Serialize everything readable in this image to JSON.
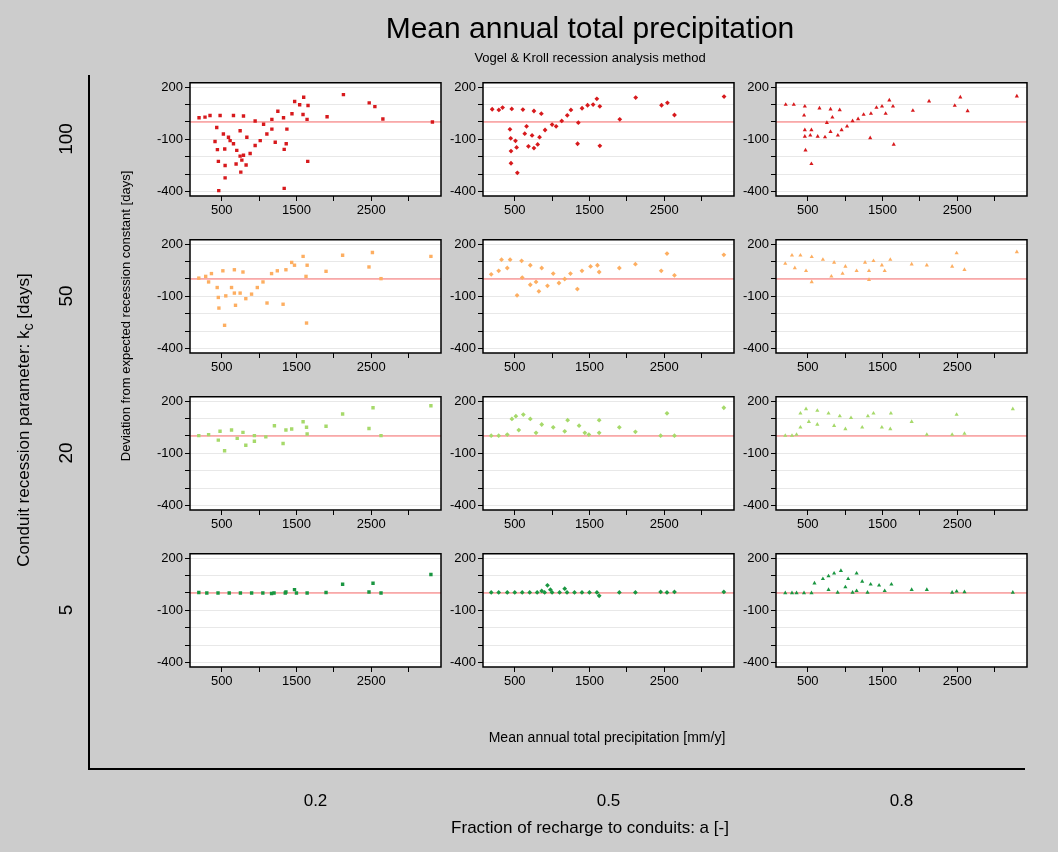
{
  "chart_data": [
    {
      "type": "scatter",
      "annotations": [
        "100",
        "Conduit recession parameter: k$_{c}$  [days]"
      ],
      "color": "#d7191c",
      "marker": "square",
      "grid": "y",
      "xlim": [
        75,
        3435
      ],
      "ylim": [
        -425,
        225
      ],
      "xticks": [
        500,
        {
          "value": 1000,
          "label": null
        },
        1500,
        {
          "value": 2000,
          "label": null
        },
        2500,
        {
          "value": 3000,
          "label": null
        }
      ],
      "yticks": [
        200,
        {
          "value": 100,
          "label": null
        },
        {
          "value": 0,
          "label": null
        },
        -100,
        {
          "value": -200,
          "label": null
        },
        {
          "value": -300,
          "label": null
        },
        -400
      ],
      "ref_lines": [
        {
          "axis": "y",
          "value": 0,
          "color": "#ff7070"
        }
      ],
      "x": [
        196,
        276,
        343,
        478,
        657,
        791,
        433,
        410,
        442,
        455,
        545,
        545,
        460,
        522,
        612,
        701,
        746,
        769,
        791,
        692,
        755,
        826,
        880,
        947,
        1015,
        1104,
        746,
        836,
        947,
        1060,
        1171,
        1216,
        1171,
        1251,
        1327,
        1336,
        1363,
        1372,
        1336,
        1440,
        1476,
        1543,
        1597,
        1655,
        1588,
        1642,
        1651,
        1910,
        2129,
        2474,
        2550,
        2657,
        3320,
        540,
        590,
        657
      ],
      "values": [
        24,
        28,
        37,
        37,
        37,
        34,
        -32,
        -112,
        -159,
        -226,
        -250,
        -321,
        -394,
        -69,
        -107,
        -163,
        -196,
        -219,
        -191,
        -241,
        -288,
        -247,
        -181,
        -135,
        -107,
        -69,
        -50,
        -88,
        6,
        -13,
        -41,
        -116,
        15,
        62,
        24,
        -157,
        -125,
        -41,
        -381,
        47,
        118,
        99,
        142,
        95,
        43,
        15,
        -226,
        30,
        157,
        110,
        88,
        17,
        0,
        -155,
        -88,
        -125
      ]
    },
    {
      "type": "scatter",
      "title": "Mean annual total precipitation",
      "subtitle": "Vogel & Kroll recession analysis method",
      "color": "#d7191c",
      "marker": "diamond",
      "grid": "y",
      "xlim": [
        75,
        3435
      ],
      "ylim": [
        -425,
        225
      ],
      "xticks": [
        500,
        {
          "value": 1000,
          "label": null
        },
        1500,
        {
          "value": 2000,
          "label": null
        },
        2500,
        {
          "value": 3000,
          "label": null
        }
      ],
      "yticks": [
        200,
        {
          "value": 100,
          "label": null
        },
        {
          "value": 0,
          "label": null
        },
        -100,
        {
          "value": -200,
          "label": null
        },
        {
          "value": -300,
          "label": null
        },
        -400
      ],
      "ref_lines": [
        {
          "axis": "y",
          "value": 0,
          "color": "#ff7070"
        }
      ],
      "x": [
        198,
        287,
        337,
        460,
        609,
        757,
        856,
        436,
        446,
        450,
        450,
        535,
        525,
        510,
        634,
        683,
        757,
        807,
        832,
        906,
        1000,
        1054,
        1129,
        1203,
        1252,
        1351,
        1341,
        1401,
        1475,
        1549,
        1599,
        1639,
        1639,
        1906,
        2119,
        2465,
        2544,
        2638,
        3302,
        732,
        658
      ],
      "values": [
        73,
        69,
        83,
        75,
        71,
        63,
        48,
        -42,
        -94,
        -167,
        -237,
        -292,
        -146,
        -108,
        -67,
        -140,
        -150,
        -129,
        -87,
        -46,
        -15,
        -25,
        6,
        38,
        69,
        -4,
        -125,
        79,
        96,
        100,
        133,
        90,
        -137,
        15,
        140,
        96,
        110,
        40,
        146,
        -77,
        -25
      ]
    },
    {
      "type": "scatter",
      "color": "#d7191c",
      "marker": "triangle",
      "grid": "y",
      "xlim": [
        75,
        3435
      ],
      "ylim": [
        -425,
        225
      ],
      "xticks": [
        500,
        {
          "value": 1000,
          "label": null
        },
        1500,
        {
          "value": 2000,
          "label": null
        },
        2500,
        {
          "value": 3000,
          "label": null
        }
      ],
      "yticks": [
        200,
        {
          "value": 100,
          "label": null
        },
        {
          "value": 0,
          "label": null
        },
        -100,
        {
          "value": -200,
          "label": null
        },
        {
          "value": -300,
          "label": null
        },
        -400
      ],
      "ref_lines": [
        {
          "axis": "y",
          "value": 0,
          "color": "#ff7070"
        }
      ],
      "x": [
        205,
        313,
        461,
        657,
        805,
        928,
        451,
        461,
        461,
        534,
        549,
        470,
        549,
        633,
        731,
        805,
        903,
        953,
        1026,
        1100,
        1174,
        1248,
        1346,
        1420,
        1494,
        1592,
        1641,
        1543,
        1651,
        1336,
        1907,
        2124,
        2468,
        2542,
        2640,
        3299,
        756,
        830
      ],
      "values": [
        100,
        100,
        90,
        79,
        73,
        69,
        38,
        -46,
        -83,
        -77,
        -46,
        -162,
        -240,
        -83,
        -87,
        -56,
        -77,
        -46,
        -25,
        6,
        17,
        42,
        48,
        83,
        90,
        125,
        90,
        48,
        -129,
        -92,
        65,
        119,
        94,
        142,
        63,
        148,
        -4,
        27
      ]
    },
    {
      "type": "scatter",
      "ylabel": "Deviation from expected recession constant [days]",
      "annotations": [
        "50"
      ],
      "color": "#fdae61",
      "marker": "square",
      "grid": "y",
      "xlim": [
        75,
        3435
      ],
      "ylim": [
        -425,
        225
      ],
      "xticks": [
        500,
        {
          "value": 1000,
          "label": null
        },
        1500,
        {
          "value": 2000,
          "label": null
        },
        2500,
        {
          "value": 3000,
          "label": null
        }
      ],
      "yticks": [
        200,
        {
          "value": 100,
          "label": null
        },
        {
          "value": 0,
          "label": null
        },
        -100,
        {
          "value": -200,
          "label": null
        },
        {
          "value": -300,
          "label": null
        },
        -400
      ],
      "ref_lines": [
        {
          "axis": "y",
          "value": 0,
          "color": "#ff7070"
        }
      ],
      "x": [
        193,
        285,
        362,
        515,
        669,
        784,
        439,
        454,
        462,
        538,
        554,
        631,
        684,
        746,
        822,
        899,
        976,
        1052,
        1106,
        1167,
        1244,
        1321,
        1359,
        1436,
        1474,
        1589,
        1643,
        1628,
        1635,
        1896,
        2118,
        2471,
        2517,
        2632,
        3300,
        324,
        669
      ],
      "values": [
        5,
        15,
        31,
        47,
        53,
        40,
        -49,
        -106,
        -167,
        -266,
        -97,
        -49,
        -151,
        -81,
        -113,
        -87,
        -49,
        -17,
        -138,
        31,
        47,
        -145,
        53,
        95,
        79,
        130,
        79,
        15,
        -253,
        44,
        136,
        69,
        152,
        2,
        130,
        -17,
        -81
      ]
    },
    {
      "type": "scatter",
      "color": "#fdae61",
      "marker": "diamond",
      "grid": "y",
      "xlim": [
        75,
        3435
      ],
      "ylim": [
        -425,
        225
      ],
      "xticks": [
        500,
        {
          "value": 1000,
          "label": null
        },
        1500,
        {
          "value": 2000,
          "label": null
        },
        2500,
        {
          "value": 3000,
          "label": null
        }
      ],
      "yticks": [
        200,
        {
          "value": 100,
          "label": null
        },
        {
          "value": 0,
          "label": null
        },
        -100,
        {
          "value": -200,
          "label": null
        },
        {
          "value": -300,
          "label": null
        },
        -400
      ],
      "ref_lines": [
        {
          "axis": "y",
          "value": 0,
          "color": "#ff7070"
        }
      ],
      "x": [
        185,
        285,
        323,
        438,
        592,
        708,
        861,
        1015,
        600,
        531,
        708,
        823,
        938,
        1092,
        1169,
        1338,
        1246,
        1400,
        1515,
        1607,
        1630,
        1900,
        2115,
        2461,
        2538,
        2638,
        3299,
        400,
        785
      ],
      "values": [
        27,
        47,
        111,
        111,
        104,
        79,
        63,
        31,
        8,
        -94,
        -33,
        -71,
        -39,
        -23,
        0,
        -58,
        31,
        47,
        72,
        79,
        40,
        63,
        85,
        47,
        146,
        21,
        139,
        63,
        -17
      ]
    },
    {
      "type": "scatter",
      "color": "#fdae61",
      "marker": "triangle",
      "grid": "y",
      "xlim": [
        75,
        3435
      ],
      "ylim": [
        -425,
        225
      ],
      "xticks": [
        500,
        {
          "value": 1000,
          "label": null
        },
        1500,
        {
          "value": 2000,
          "label": null
        },
        2500,
        {
          "value": 3000,
          "label": null
        }
      ],
      "yticks": [
        200,
        {
          "value": 100,
          "label": null
        },
        {
          "value": 0,
          "label": null
        },
        -100,
        {
          "value": -200,
          "label": null
        },
        {
          "value": -300,
          "label": null
        },
        -400
      ],
      "ref_lines": [
        {
          "axis": "y",
          "value": 0,
          "color": "#ff7070"
        }
      ],
      "x": [
        199,
        289,
        402,
        553,
        703,
        853,
        1004,
        327,
        477,
        553,
        816,
        966,
        1154,
        1267,
        1320,
        1380,
        1492,
        1605,
        1530,
        1320,
        1891,
        2094,
        2433,
        2493,
        2598,
        3299
      ],
      "values": [
        88,
        136,
        136,
        127,
        111,
        95,
        72,
        63,
        47,
        -17,
        15,
        31,
        47,
        95,
        47,
        104,
        79,
        111,
        47,
        -4,
        85,
        79,
        72,
        149,
        53,
        155
      ]
    },
    {
      "type": "scatter",
      "annotations": [
        "20"
      ],
      "color": "#a6d96a",
      "marker": "square",
      "grid": "y",
      "xlim": [
        75,
        3435
      ],
      "ylim": [
        -425,
        225
      ],
      "xticks": [
        500,
        {
          "value": 1000,
          "label": null
        },
        1500,
        {
          "value": 2000,
          "label": null
        },
        2500,
        {
          "value": 3000,
          "label": null
        }
      ],
      "yticks": [
        200,
        {
          "value": 100,
          "label": null
        },
        {
          "value": 0,
          "label": null
        },
        -100,
        {
          "value": -200,
          "label": null
        },
        {
          "value": -300,
          "label": null
        },
        -400
      ],
      "ref_lines": [
        {
          "axis": "y",
          "value": 0,
          "color": "#ff7070"
        }
      ],
      "x": [
        193,
        324,
        477,
        631,
        784,
        937,
        454,
        538,
        707,
        822,
        937,
        1090,
        1205,
        1321,
        1359,
        1436,
        1589,
        1635,
        1643,
        1896,
        2118,
        2471,
        2525,
        2632,
        3300
      ],
      "values": [
        2,
        8,
        27,
        34,
        21,
        2,
        -24,
        -85,
        -14,
        -53,
        -30,
        -5,
        59,
        -43,
        34,
        40,
        82,
        50,
        11,
        56,
        126,
        43,
        162,
        2,
        174
      ]
    },
    {
      "type": "scatter",
      "color": "#a6d96a",
      "marker": "diamond",
      "grid": "y",
      "xlim": [
        75,
        3435
      ],
      "ylim": [
        -425,
        225
      ],
      "xticks": [
        500,
        {
          "value": 1000,
          "label": null
        },
        1500,
        {
          "value": 2000,
          "label": null
        },
        2500,
        {
          "value": 3000,
          "label": null
        }
      ],
      "yticks": [
        200,
        {
          "value": 100,
          "label": null
        },
        {
          "value": 0,
          "label": null
        },
        -100,
        {
          "value": -200,
          "label": null
        },
        {
          "value": -300,
          "label": null
        },
        -400
      ],
      "ref_lines": [
        {
          "axis": "y",
          "value": 0,
          "color": "#ff7070"
        }
      ],
      "x": [
        185,
        285,
        400,
        462,
        515,
        615,
        708,
        861,
        1015,
        1169,
        554,
        785,
        1208,
        1361,
        1438,
        1492,
        1630,
        1630,
        1900,
        2115,
        2453,
        2538,
        2638,
        3299
      ],
      "values": [
        2,
        2,
        8,
        98,
        114,
        123,
        98,
        66,
        50,
        27,
        34,
        18,
        91,
        59,
        18,
        8,
        91,
        18,
        50,
        24,
        2,
        130,
        2,
        162
      ]
    },
    {
      "type": "scatter",
      "color": "#a6d96a",
      "marker": "triangle",
      "grid": "y",
      "xlim": [
        75,
        3435
      ],
      "ylim": [
        -425,
        225
      ],
      "xticks": [
        500,
        {
          "value": 1000,
          "label": null
        },
        1500,
        {
          "value": 2000,
          "label": null
        },
        2500,
        {
          "value": 3000,
          "label": null
        }
      ],
      "yticks": [
        200,
        {
          "value": 100,
          "label": null
        },
        {
          "value": 0,
          "label": null
        },
        -100,
        {
          "value": -200,
          "label": null
        },
        {
          "value": -300,
          "label": null
        },
        -400
      ],
      "ref_lines": [
        {
          "axis": "y",
          "value": 0,
          "color": "#ff7070"
        }
      ],
      "x": [
        199,
        289,
        350,
        402,
        477,
        628,
        778,
        929,
        1079,
        402,
        515,
        628,
        853,
        1004,
        1229,
        1305,
        1380,
        1492,
        1613,
        1605,
        1891,
        2094,
        2433,
        2493,
        2598,
        3245
      ],
      "values": [
        2,
        2,
        8,
        130,
        155,
        146,
        130,
        114,
        104,
        50,
        82,
        66,
        59,
        40,
        50,
        114,
        130,
        50,
        130,
        40,
        82,
        8,
        8,
        123,
        14,
        155
      ]
    },
    {
      "type": "scatter",
      "annotations": [
        "5",
        "0.2"
      ],
      "color": "#1a9641",
      "marker": "square",
      "grid": "y",
      "xlim": [
        75,
        3435
      ],
      "ylim": [
        -425,
        225
      ],
      "xticks": [
        500,
        {
          "value": 1000,
          "label": null
        },
        1500,
        {
          "value": 2000,
          "label": null
        },
        2500,
        {
          "value": 3000,
          "label": null
        }
      ],
      "yticks": [
        200,
        {
          "value": 100,
          "label": null
        },
        {
          "value": 0,
          "label": null
        },
        -100,
        {
          "value": -200,
          "label": null
        },
        {
          "value": -300,
          "label": null
        },
        -400
      ],
      "ref_lines": [
        {
          "axis": "y",
          "value": 0,
          "color": "#ff7070"
        }
      ],
      "x": [
        193,
        300,
        450,
        600,
        750,
        900,
        1050,
        1200,
        1350,
        1500,
        1643,
        1167,
        1359,
        1474,
        1896,
        2118,
        2471,
        2525,
        2632,
        3300
      ],
      "values": [
        3,
        0,
        0,
        0,
        0,
        0,
        0,
        0,
        0,
        0,
        0,
        -3,
        6,
        19,
        3,
        50,
        6,
        56,
        0,
        106
      ]
    },
    {
      "type": "scatter",
      "xlabel": "Mean annual total precipitation [mm/y]",
      "annotations": [
        "0.5",
        "Fraction of recharge to conduits: a  [-]"
      ],
      "color": "#1a9641",
      "marker": "diamond",
      "grid": "y",
      "xlim": [
        75,
        3435
      ],
      "ylim": [
        -425,
        225
      ],
      "xticks": [
        500,
        {
          "value": 1000,
          "label": null
        },
        1500,
        {
          "value": 2000,
          "label": null
        },
        2500,
        {
          "value": 3000,
          "label": null
        }
      ],
      "yticks": [
        200,
        {
          "value": 100,
          "label": null
        },
        {
          "value": 0,
          "label": null
        },
        -100,
        {
          "value": -200,
          "label": null
        },
        {
          "value": -300,
          "label": null
        },
        -400
      ],
      "ref_lines": [
        {
          "axis": "y",
          "value": 0,
          "color": "#ff7070"
        }
      ],
      "x": [
        185,
        285,
        400,
        500,
        600,
        700,
        800,
        900,
        1000,
        1100,
        1200,
        1300,
        1400,
        1500,
        1600,
        938,
        977,
        1169,
        1630,
        1900,
        2115,
        2453,
        2538,
        2638,
        3299,
        861
      ],
      "values": [
        3,
        3,
        3,
        3,
        3,
        3,
        3,
        3,
        3,
        3,
        3,
        3,
        3,
        3,
        3,
        44,
        19,
        25,
        -16,
        3,
        3,
        6,
        3,
        6,
        6,
        12
      ]
    },
    {
      "type": "scatter",
      "annotations": [
        "0.8"
      ],
      "color": "#1a9641",
      "marker": "triangle",
      "grid": "y",
      "xlim": [
        75,
        3435
      ],
      "ylim": [
        -425,
        225
      ],
      "xticks": [
        500,
        {
          "value": 1000,
          "label": null
        },
        1500,
        {
          "value": 2000,
          "label": null
        },
        2500,
        {
          "value": 3000,
          "label": null
        }
      ],
      "yticks": [
        200,
        {
          "value": 100,
          "label": null
        },
        {
          "value": 0,
          "label": null
        },
        -100,
        {
          "value": -200,
          "label": null
        },
        {
          "value": -300,
          "label": null
        },
        -400
      ],
      "ref_lines": [
        {
          "axis": "y",
          "value": 0,
          "color": "#ff7070"
        }
      ],
      "x": [
        199,
        289,
        350,
        450,
        550,
        590,
        703,
        778,
        853,
        944,
        1041,
        1154,
        1229,
        1342,
        1455,
        1620,
        1004,
        778,
        1154,
        1530,
        900,
        1100,
        1300,
        1891,
        2094,
        2433,
        2493,
        2598,
        3245
      ],
      "values": [
        0,
        0,
        0,
        0,
        0,
        56,
        81,
        97,
        113,
        128,
        81,
        113,
        66,
        50,
        44,
        50,
        34,
        19,
        12,
        12,
        3,
        3,
        3,
        19,
        19,
        3,
        9,
        6,
        3
      ]
    }
  ]
}
